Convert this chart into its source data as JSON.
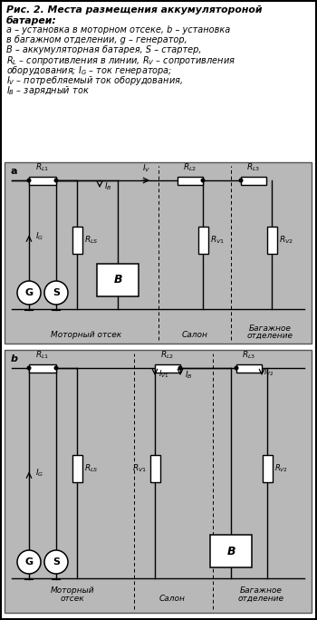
{
  "bg_color": "#ffffff",
  "diagram_bg": "#b0b0b0",
  "wire_color": "#000000",
  "component_fill": "#ffffff",
  "border_color": "#000000",
  "text_color": "#000000",
  "outer_border": true,
  "figsize": [
    3.5,
    6.84
  ],
  "dpi": 100
}
